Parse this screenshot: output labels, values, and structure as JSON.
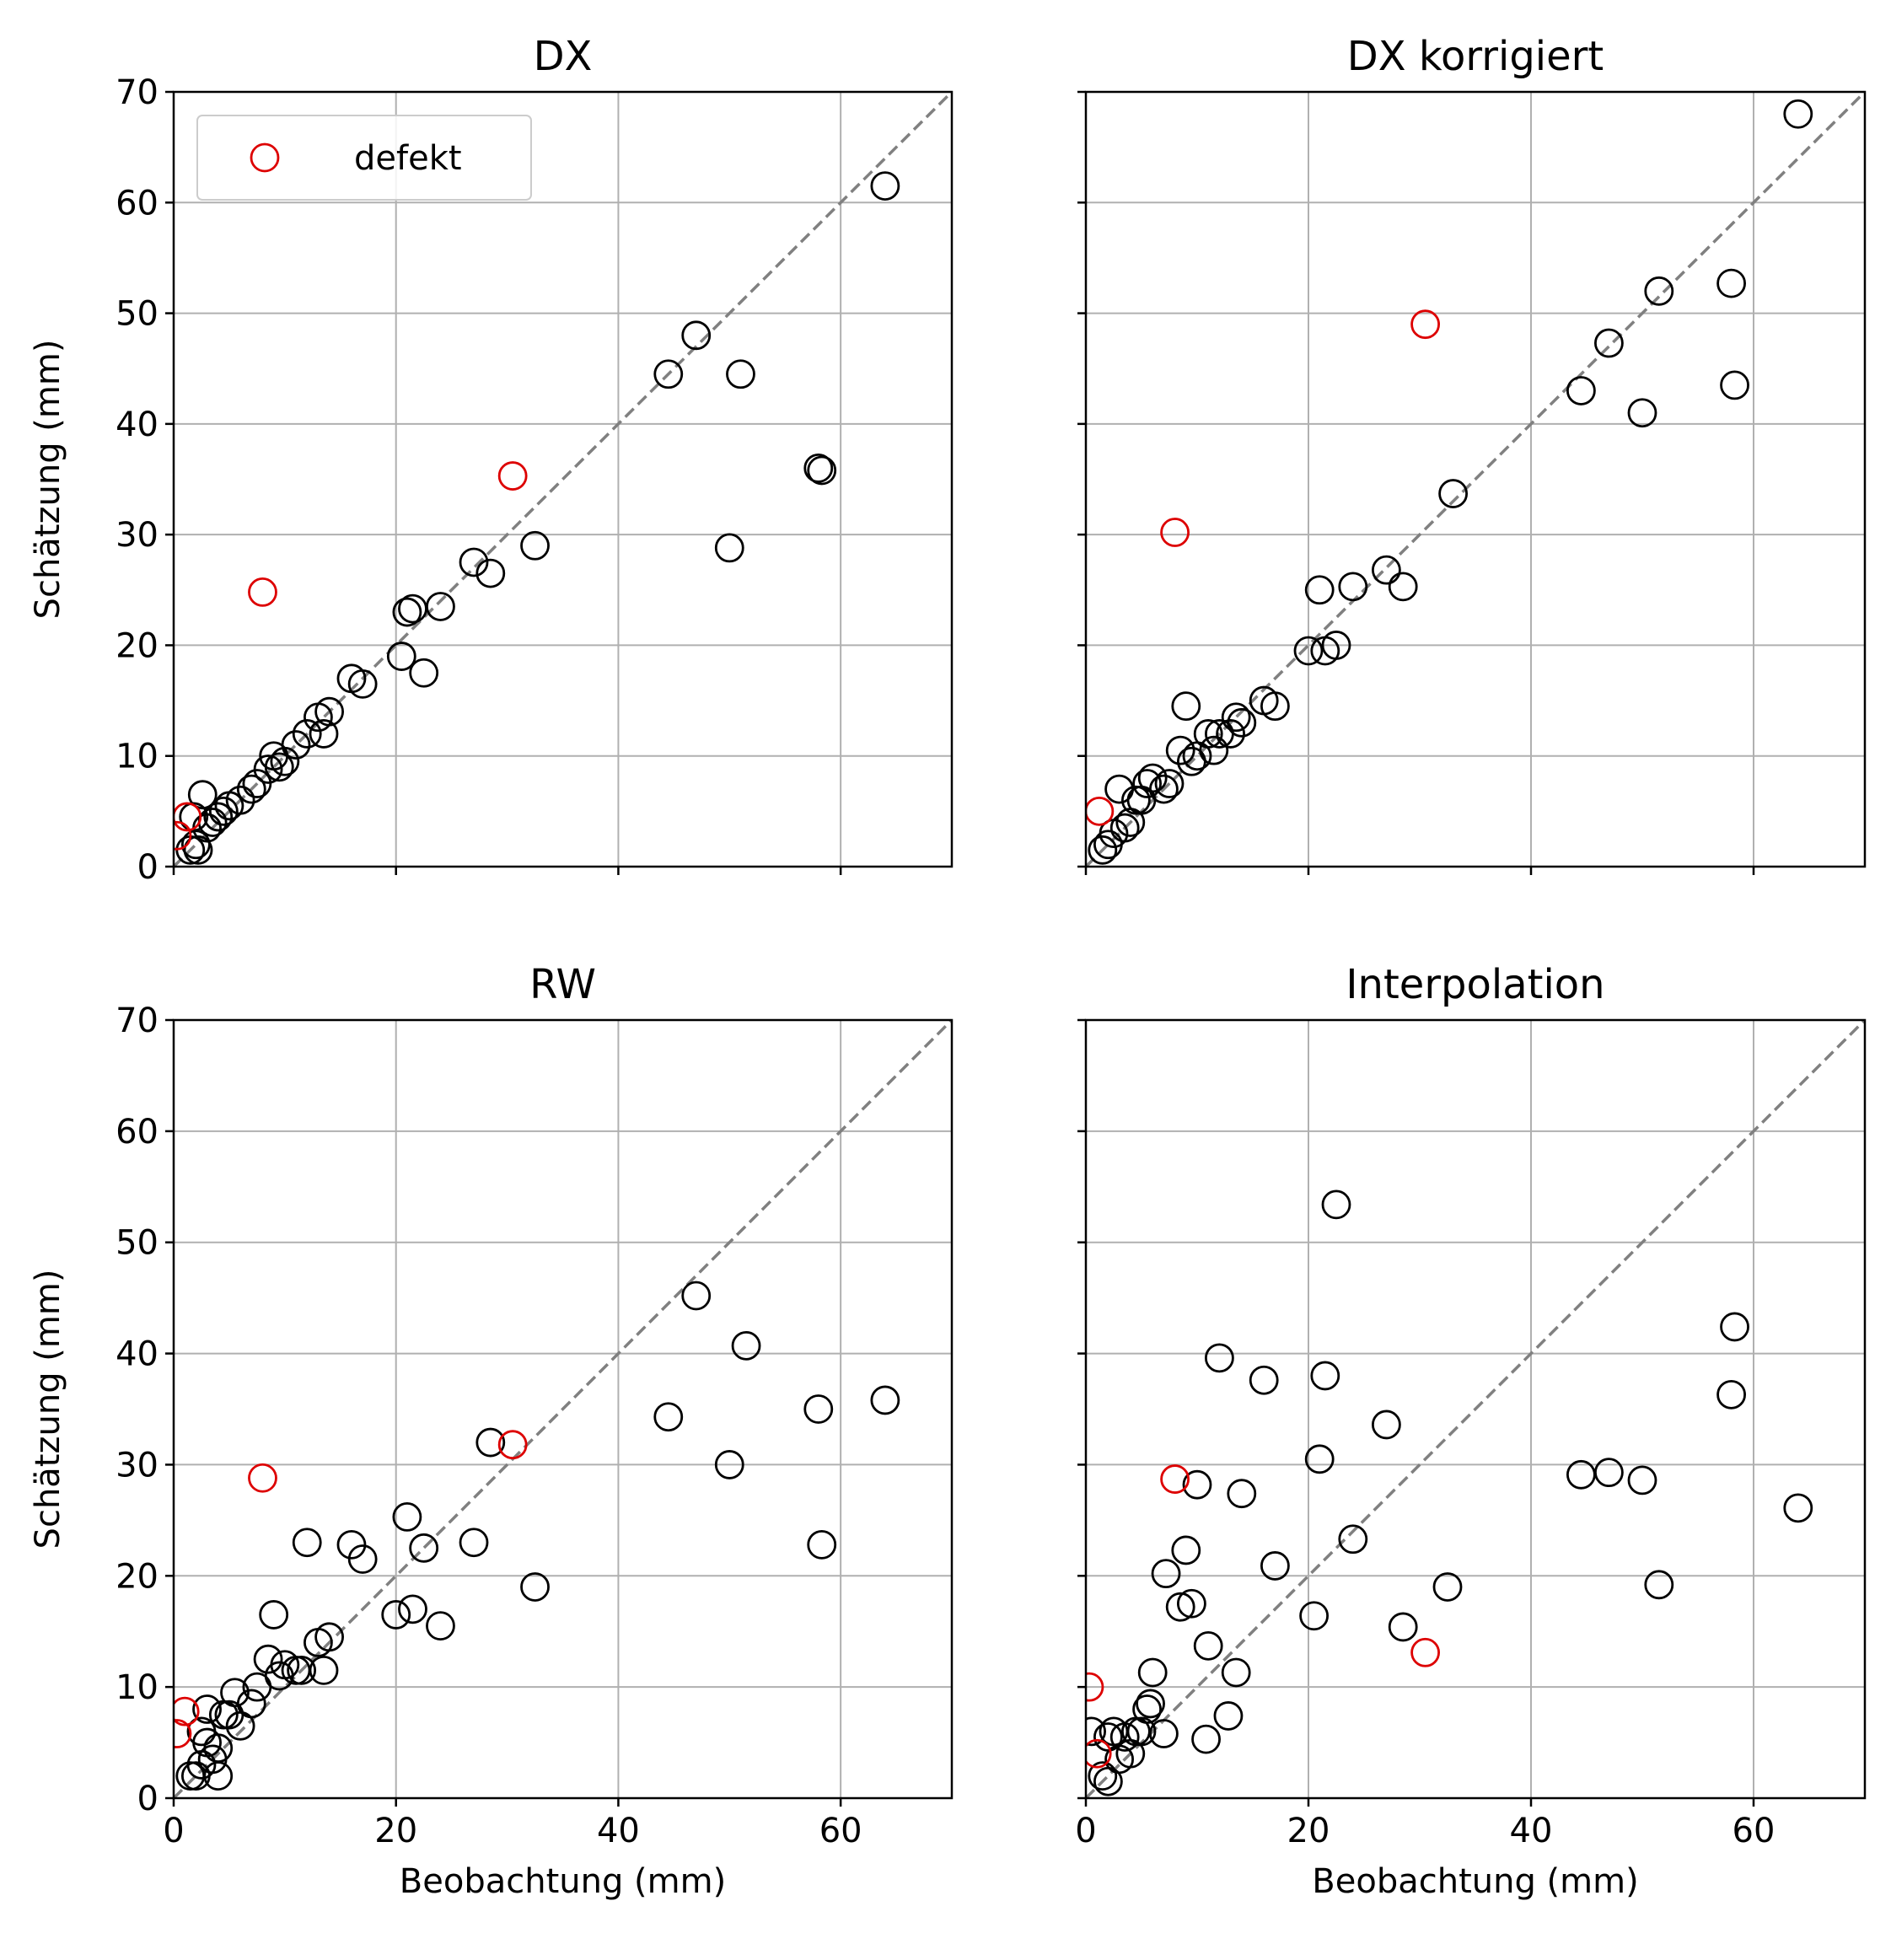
{
  "chart_data": [
    {
      "type": "scatter",
      "title": "DX",
      "xlabel": "",
      "ylabel": "Schätzung (mm)",
      "xlim": [
        0,
        70
      ],
      "ylim": [
        0,
        70
      ],
      "xticks": [
        "0",
        "20",
        "40",
        "60"
      ],
      "yticks": [
        "0",
        "10",
        "20",
        "30",
        "40",
        "50",
        "60",
        "70"
      ],
      "show_xticklabels": false,
      "show_yticklabels": true,
      "grid": true,
      "legend": {
        "entries": [
          "defekt"
        ],
        "placement": "upper-left"
      },
      "reference_line": "y = x",
      "series": [
        {
          "color": "#000000",
          "points": [
            [
              1.5,
              1.5
            ],
            [
              2,
              2
            ],
            [
              1.8,
              4.5
            ],
            [
              2.2,
              1.5
            ],
            [
              2.6,
              6.5
            ],
            [
              3,
              3.5
            ],
            [
              3.5,
              4
            ],
            [
              4,
              4.5
            ],
            [
              4.5,
              5
            ],
            [
              5,
              5.5
            ],
            [
              6,
              6
            ],
            [
              7,
              7
            ],
            [
              7.5,
              7.5
            ],
            [
              8.5,
              8.8
            ],
            [
              9,
              10
            ],
            [
              9.5,
              9
            ],
            [
              10,
              9.5
            ],
            [
              11,
              11
            ],
            [
              12,
              12
            ],
            [
              13,
              13.5
            ],
            [
              13.5,
              12
            ],
            [
              14,
              14
            ],
            [
              16,
              17
            ],
            [
              17,
              16.5
            ],
            [
              20.5,
              19
            ],
            [
              21,
              23
            ],
            [
              21.5,
              23.3
            ],
            [
              22.5,
              17.5
            ],
            [
              24,
              23.5
            ],
            [
              27,
              27.5
            ],
            [
              28.5,
              26.5
            ],
            [
              32.5,
              29
            ],
            [
              44.5,
              44.5
            ],
            [
              47,
              48
            ],
            [
              50,
              28.8
            ],
            [
              51,
              44.5
            ],
            [
              58,
              36
            ],
            [
              58.3,
              35.8
            ],
            [
              64,
              61.5
            ]
          ]
        },
        {
          "name": "defekt",
          "color": "#dd0000",
          "points": [
            [
              0.3,
              2.8
            ],
            [
              1.2,
              4.5
            ],
            [
              8,
              24.8
            ],
            [
              30.5,
              35.3
            ]
          ]
        }
      ]
    },
    {
      "type": "scatter",
      "title": "DX korrigiert",
      "xlabel": "",
      "ylabel": "",
      "xlim": [
        0,
        70
      ],
      "ylim": [
        0,
        70
      ],
      "xticks": [
        "0",
        "20",
        "40",
        "60"
      ],
      "yticks": [
        "0",
        "10",
        "20",
        "30",
        "40",
        "50",
        "60",
        "70"
      ],
      "show_xticklabels": false,
      "show_yticklabels": false,
      "grid": true,
      "reference_line": "y = x",
      "series": [
        {
          "color": "#000000",
          "points": [
            [
              1.5,
              1.5
            ],
            [
              2,
              2
            ],
            [
              2.5,
              3
            ],
            [
              3,
              7
            ],
            [
              3.5,
              3.5
            ],
            [
              4,
              4
            ],
            [
              4.5,
              6
            ],
            [
              5,
              6
            ],
            [
              5.5,
              7.5
            ],
            [
              6,
              8
            ],
            [
              7,
              7
            ],
            [
              7.5,
              7.5
            ],
            [
              8.5,
              10.5
            ],
            [
              9,
              14.5
            ],
            [
              9.5,
              9.5
            ],
            [
              10,
              10
            ],
            [
              11,
              12
            ],
            [
              11.5,
              10.5
            ],
            [
              12,
              12
            ],
            [
              13,
              12
            ],
            [
              13.5,
              13.5
            ],
            [
              14,
              13
            ],
            [
              16,
              15
            ],
            [
              17,
              14.5
            ],
            [
              20,
              19.5
            ],
            [
              21,
              25
            ],
            [
              21.5,
              19.5
            ],
            [
              22.5,
              20
            ],
            [
              24,
              25.3
            ],
            [
              27,
              26.8
            ],
            [
              28.5,
              25.3
            ],
            [
              33,
              33.7
            ],
            [
              44.5,
              43
            ],
            [
              47,
              47.3
            ],
            [
              50,
              41
            ],
            [
              51.5,
              52
            ],
            [
              58,
              52.7
            ],
            [
              58.3,
              43.5
            ],
            [
              64,
              68
            ]
          ]
        },
        {
          "name": "defekt",
          "color": "#dd0000",
          "points": [
            [
              1.2,
              5
            ],
            [
              8,
              30.2
            ],
            [
              30.5,
              49
            ]
          ]
        }
      ]
    },
    {
      "type": "scatter",
      "title": "RW",
      "xlabel": "Beobachtung (mm)",
      "ylabel": "Schätzung (mm)",
      "xlim": [
        0,
        70
      ],
      "ylim": [
        0,
        70
      ],
      "xticks": [
        "0",
        "20",
        "40",
        "60"
      ],
      "yticks": [
        "0",
        "10",
        "20",
        "30",
        "40",
        "50",
        "60",
        "70"
      ],
      "show_xticklabels": true,
      "show_yticklabels": true,
      "grid": true,
      "reference_line": "y = x",
      "series": [
        {
          "color": "#000000",
          "points": [
            [
              1.5,
              2
            ],
            [
              2,
              2
            ],
            [
              2.5,
              3
            ],
            [
              2.5,
              6
            ],
            [
              3,
              8
            ],
            [
              3,
              5
            ],
            [
              3.5,
              3.5
            ],
            [
              4,
              4.5
            ],
            [
              4,
              2
            ],
            [
              4.5,
              7.5
            ],
            [
              5,
              7.5
            ],
            [
              5.5,
              9.5
            ],
            [
              6,
              6.5
            ],
            [
              7,
              8.5
            ],
            [
              7.5,
              10
            ],
            [
              8.5,
              12.5
            ],
            [
              9,
              16.5
            ],
            [
              9.5,
              11
            ],
            [
              10,
              12
            ],
            [
              11,
              11.5
            ],
            [
              11.5,
              11.5
            ],
            [
              12,
              23
            ],
            [
              13,
              14
            ],
            [
              13.5,
              11.5
            ],
            [
              14,
              14.5
            ],
            [
              16,
              22.8
            ],
            [
              17,
              21.5
            ],
            [
              20,
              16.5
            ],
            [
              21,
              25.3
            ],
            [
              21.5,
              17
            ],
            [
              22.5,
              22.5
            ],
            [
              24,
              15.5
            ],
            [
              27,
              23
            ],
            [
              28.5,
              32
            ],
            [
              32.5,
              19
            ],
            [
              44.5,
              34.3
            ],
            [
              47,
              45.2
            ],
            [
              50,
              30
            ],
            [
              51.5,
              40.7
            ],
            [
              58,
              35
            ],
            [
              58.3,
              22.8
            ],
            [
              64,
              35.8
            ]
          ]
        },
        {
          "name": "defekt",
          "color": "#dd0000",
          "points": [
            [
              0.3,
              5.8
            ],
            [
              1,
              7.8
            ],
            [
              8,
              28.8
            ],
            [
              30.5,
              31.8
            ]
          ]
        }
      ]
    },
    {
      "type": "scatter",
      "title": "Interpolation",
      "xlabel": "Beobachtung (mm)",
      "ylabel": "",
      "xlim": [
        0,
        70
      ],
      "ylim": [
        0,
        70
      ],
      "xticks": [
        "0",
        "20",
        "40",
        "60"
      ],
      "yticks": [
        "0",
        "10",
        "20",
        "30",
        "40",
        "50",
        "60",
        "70"
      ],
      "show_xticklabels": true,
      "show_yticklabels": false,
      "grid": true,
      "reference_line": "y = x",
      "series": [
        {
          "color": "#000000",
          "points": [
            [
              0.5,
              6
            ],
            [
              1.5,
              2
            ],
            [
              2,
              5.5
            ],
            [
              2,
              1.5
            ],
            [
              2.5,
              6
            ],
            [
              3,
              3.5
            ],
            [
              3.5,
              5.5
            ],
            [
              4,
              4
            ],
            [
              4.5,
              6
            ],
            [
              5,
              6
            ],
            [
              5.5,
              8
            ],
            [
              5.8,
              8.5
            ],
            [
              6,
              11.3
            ],
            [
              7,
              5.8
            ],
            [
              7.2,
              20.2
            ],
            [
              8.5,
              17.2
            ],
            [
              9,
              22.3
            ],
            [
              9.5,
              17.5
            ],
            [
              10,
              28.2
            ],
            [
              10.8,
              5.3
            ],
            [
              11,
              13.7
            ],
            [
              12,
              39.6
            ],
            [
              12.8,
              7.4
            ],
            [
              13.5,
              11.3
            ],
            [
              14,
              27.4
            ],
            [
              16,
              37.6
            ],
            [
              17,
              20.9
            ],
            [
              20.5,
              16.4
            ],
            [
              21,
              30.5
            ],
            [
              21.5,
              38
            ],
            [
              22.5,
              53.4
            ],
            [
              24,
              23.3
            ],
            [
              27,
              33.6
            ],
            [
              28.5,
              15.4
            ],
            [
              32.5,
              19
            ],
            [
              44.5,
              29.1
            ],
            [
              47,
              29.3
            ],
            [
              50,
              28.6
            ],
            [
              51.5,
              19.2
            ],
            [
              58,
              36.3
            ],
            [
              58.3,
              42.4
            ],
            [
              64,
              26.1
            ]
          ]
        },
        {
          "name": "defekt",
          "color": "#dd0000",
          "points": [
            [
              0.3,
              10
            ],
            [
              1,
              4
            ],
            [
              8,
              28.7
            ],
            [
              30.5,
              13.1
            ]
          ]
        }
      ]
    }
  ]
}
